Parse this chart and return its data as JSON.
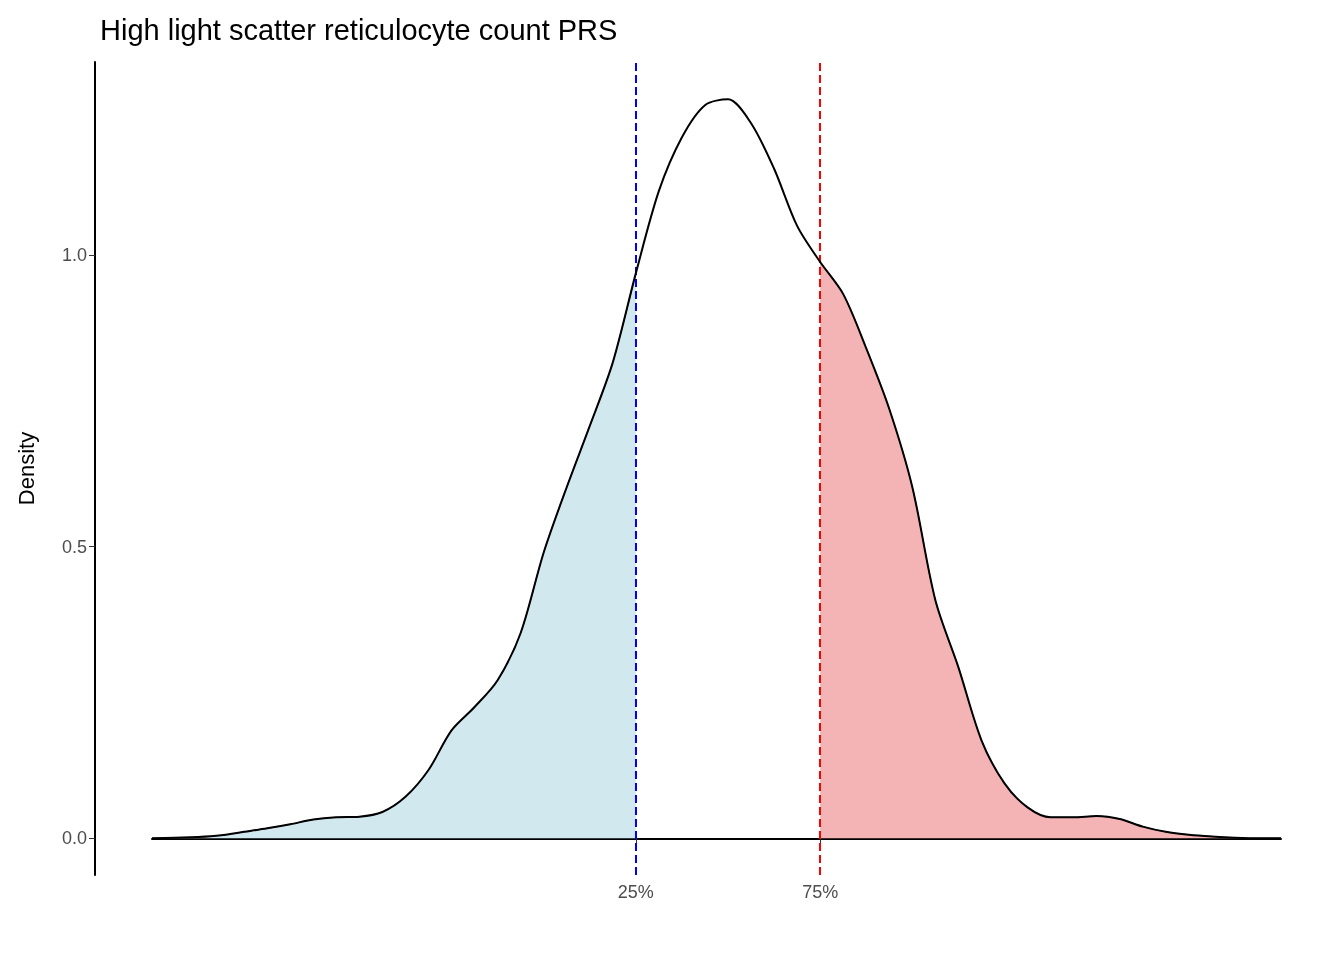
{
  "chart_data": {
    "type": "line",
    "title": "High light scatter reticulocyte count PRS",
    "ylabel": "Density",
    "categories": [
      null,
      null,
      null,
      null,
      null,
      null,
      null,
      null,
      null,
      null,
      null,
      null,
      null,
      null,
      null,
      null,
      null,
      null,
      null,
      null,
      null,
      "25%",
      null,
      null,
      null,
      null,
      null,
      null,
      null,
      "75%",
      null,
      null,
      null,
      null,
      null,
      null,
      null,
      null,
      null,
      null,
      null,
      null,
      null,
      null,
      null,
      null,
      null,
      null,
      null,
      null
    ],
    "series": [
      {
        "type": "area",
        "color": "#d1e8ef",
        "values": [
          0,
          0.001,
          0.002,
          0.005,
          0.011,
          0.017,
          0.024,
          0.032,
          0.036,
          0.037,
          0.045,
          0.071,
          0.117,
          0.185,
          0.225,
          0.271,
          0.352,
          0.49,
          0.602,
          0.707,
          0.816,
          0.969,
          null,
          null,
          null,
          null,
          null,
          null,
          null,
          null,
          null,
          null,
          null,
          null,
          null,
          null,
          null,
          null,
          null,
          null,
          null,
          null,
          null,
          null,
          null,
          null,
          null,
          null,
          null,
          null
        ]
      },
      {
        "type": "area",
        "color": "#f4b4b5",
        "values": [
          null,
          null,
          null,
          null,
          null,
          null,
          null,
          null,
          null,
          null,
          null,
          null,
          null,
          null,
          null,
          null,
          null,
          null,
          null,
          null,
          null,
          null,
          null,
          null,
          null,
          null,
          null,
          null,
          null,
          0.988,
          0.933,
          0.84,
          0.736,
          0.602,
          0.408,
          0.293,
          0.168,
          0.094,
          0.053,
          0.036,
          0.036,
          0.038,
          0.033,
          0.02,
          0.011,
          0.006,
          0.003,
          0.001,
          0,
          0
        ]
      },
      {
        "color": "#000000",
        "values": [
          0,
          0.001,
          0.002,
          0.005,
          0.011,
          0.017,
          0.024,
          0.032,
          0.036,
          0.037,
          0.045,
          0.071,
          0.117,
          0.185,
          0.225,
          0.271,
          0.352,
          0.49,
          0.602,
          0.707,
          0.816,
          0.969,
          1.11,
          1.202,
          1.257,
          1.267,
          1.226,
          1.148,
          1.05,
          0.988,
          0.933,
          0.84,
          0.736,
          0.602,
          0.408,
          0.293,
          0.168,
          0.094,
          0.053,
          0.036,
          0.036,
          0.038,
          0.033,
          0.02,
          0.011,
          0.006,
          0.003,
          0.001,
          0,
          0
        ]
      }
    ],
    "ylim": [
      -0.063,
      1.331
    ],
    "yticks": [
      {
        "value": 0,
        "label": "0.0"
      },
      0.5,
      {
        "value": 1,
        "label": "1.0"
      }
    ],
    "ref_lines": [
      {
        "axis": "x",
        "value": "25%",
        "color": "#0000ff",
        "line_style": "dashed"
      },
      {
        "axis": "x",
        "value": "75%",
        "color": "#ff0000",
        "line_style": "dashed"
      }
    ],
    "marker": "none",
    "grid": false
  }
}
